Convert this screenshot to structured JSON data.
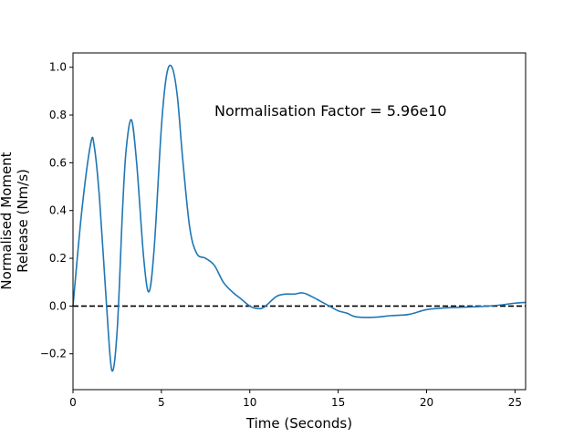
{
  "chart_data": {
    "type": "line",
    "xlabel": "Time (Seconds)",
    "ylabel_line1": "Normalised Moment",
    "ylabel_line2": "Release (Nm/s)",
    "annotation": "Normalisation Factor = 5.96e10",
    "xlim": [
      0,
      25.6
    ],
    "ylim": [
      -0.35,
      1.06
    ],
    "x_ticks": [
      0,
      5,
      10,
      15,
      20,
      25
    ],
    "y_ticks": [
      -0.2,
      0.0,
      0.2,
      0.4,
      0.6,
      0.8,
      1.0
    ],
    "x_tick_labels": [
      "0",
      "5",
      "10",
      "15",
      "20",
      "25"
    ],
    "y_tick_labels": [
      "−0.2",
      "0.0",
      "0.2",
      "0.4",
      "0.6",
      "0.8",
      "1.0"
    ],
    "grid": false,
    "reference_line": {
      "y": 0,
      "style": "dashed",
      "color": "#000000"
    },
    "series": [
      {
        "color": "#1f77b4",
        "x": [
          0,
          0.5,
          1.0,
          1.2,
          1.5,
          1.9,
          2.2,
          2.5,
          2.8,
          3.0,
          3.3,
          3.6,
          4.0,
          4.3,
          4.6,
          5.0,
          5.3,
          5.6,
          5.9,
          6.2,
          6.6,
          7.0,
          7.5,
          8.0,
          8.5,
          9.0,
          9.5,
          10.0,
          10.4,
          10.8,
          11.5,
          12.0,
          12.5,
          13.0,
          13.5,
          14.0,
          14.5,
          15.0,
          15.5,
          16.0,
          17.0,
          18.0,
          19.0,
          20.0,
          21.0,
          22.0,
          23.0,
          24.0,
          25.0,
          25.6
        ],
        "y": [
          0.0,
          0.4,
          0.68,
          0.67,
          0.45,
          0.0,
          -0.27,
          -0.1,
          0.4,
          0.65,
          0.78,
          0.6,
          0.2,
          0.06,
          0.25,
          0.75,
          0.97,
          1.0,
          0.88,
          0.62,
          0.33,
          0.22,
          0.2,
          0.17,
          0.1,
          0.06,
          0.03,
          0.0,
          -0.01,
          -0.005,
          0.04,
          0.05,
          0.05,
          0.055,
          0.04,
          0.02,
          0.0,
          -0.02,
          -0.03,
          -0.045,
          -0.047,
          -0.04,
          -0.035,
          -0.015,
          -0.008,
          -0.005,
          -0.002,
          0.003,
          0.012,
          0.015
        ]
      }
    ]
  }
}
